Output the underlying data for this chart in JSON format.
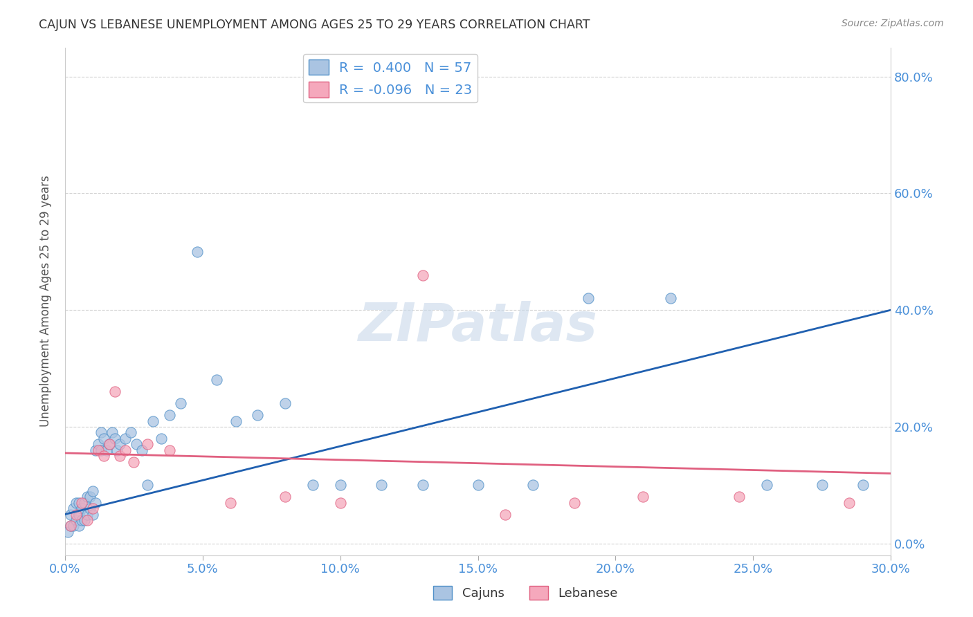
{
  "title": "CAJUN VS LEBANESE UNEMPLOYMENT AMONG AGES 25 TO 29 YEARS CORRELATION CHART",
  "source": "Source: ZipAtlas.com",
  "ylabel": "Unemployment Among Ages 25 to 29 years",
  "xmin": 0.0,
  "xmax": 0.3,
  "ymin": -0.02,
  "ymax": 0.85,
  "xticks": [
    0.0,
    0.05,
    0.1,
    0.15,
    0.2,
    0.25,
    0.3
  ],
  "yticks": [
    0.0,
    0.2,
    0.4,
    0.6,
    0.8
  ],
  "cajun_R": 0.4,
  "cajun_N": 57,
  "lebanese_R": -0.096,
  "lebanese_N": 23,
  "cajun_color": "#aac4e2",
  "lebanese_color": "#f5a8bc",
  "cajun_edge_color": "#5090c8",
  "lebanese_edge_color": "#e06080",
  "cajun_line_color": "#2060b0",
  "lebanese_line_color": "#e06080",
  "tick_label_color": "#4a90d9",
  "title_color": "#333333",
  "grid_color": "#cccccc",
  "watermark_color": "#c8d8ea",
  "cajun_x": [
    0.001,
    0.002,
    0.002,
    0.003,
    0.003,
    0.004,
    0.004,
    0.005,
    0.005,
    0.005,
    0.006,
    0.006,
    0.007,
    0.007,
    0.008,
    0.008,
    0.009,
    0.009,
    0.01,
    0.01,
    0.011,
    0.011,
    0.012,
    0.013,
    0.013,
    0.014,
    0.015,
    0.016,
    0.017,
    0.018,
    0.019,
    0.02,
    0.022,
    0.024,
    0.026,
    0.028,
    0.03,
    0.032,
    0.035,
    0.038,
    0.042,
    0.048,
    0.055,
    0.062,
    0.07,
    0.08,
    0.09,
    0.1,
    0.115,
    0.13,
    0.15,
    0.17,
    0.19,
    0.22,
    0.255,
    0.275,
    0.29
  ],
  "cajun_y": [
    0.02,
    0.03,
    0.05,
    0.03,
    0.06,
    0.04,
    0.07,
    0.03,
    0.05,
    0.07,
    0.04,
    0.06,
    0.04,
    0.07,
    0.05,
    0.08,
    0.06,
    0.08,
    0.05,
    0.09,
    0.07,
    0.16,
    0.17,
    0.16,
    0.19,
    0.18,
    0.16,
    0.17,
    0.19,
    0.18,
    0.16,
    0.17,
    0.18,
    0.19,
    0.17,
    0.16,
    0.1,
    0.21,
    0.18,
    0.22,
    0.24,
    0.5,
    0.28,
    0.21,
    0.22,
    0.24,
    0.1,
    0.1,
    0.1,
    0.1,
    0.1,
    0.1,
    0.42,
    0.42,
    0.1,
    0.1,
    0.1
  ],
  "lebanese_x": [
    0.002,
    0.004,
    0.006,
    0.008,
    0.01,
    0.012,
    0.014,
    0.016,
    0.018,
    0.02,
    0.022,
    0.025,
    0.03,
    0.038,
    0.06,
    0.08,
    0.1,
    0.13,
    0.16,
    0.185,
    0.21,
    0.245,
    0.285
  ],
  "lebanese_y": [
    0.03,
    0.05,
    0.07,
    0.04,
    0.06,
    0.16,
    0.15,
    0.17,
    0.26,
    0.15,
    0.16,
    0.14,
    0.17,
    0.16,
    0.07,
    0.08,
    0.07,
    0.46,
    0.05,
    0.07,
    0.08,
    0.08,
    0.07
  ],
  "cajun_trendline_x": [
    0.0,
    0.3
  ],
  "cajun_trendline_y": [
    0.05,
    0.4
  ],
  "lebanese_trendline_x": [
    0.0,
    0.3
  ],
  "lebanese_trendline_y": [
    0.155,
    0.12
  ]
}
